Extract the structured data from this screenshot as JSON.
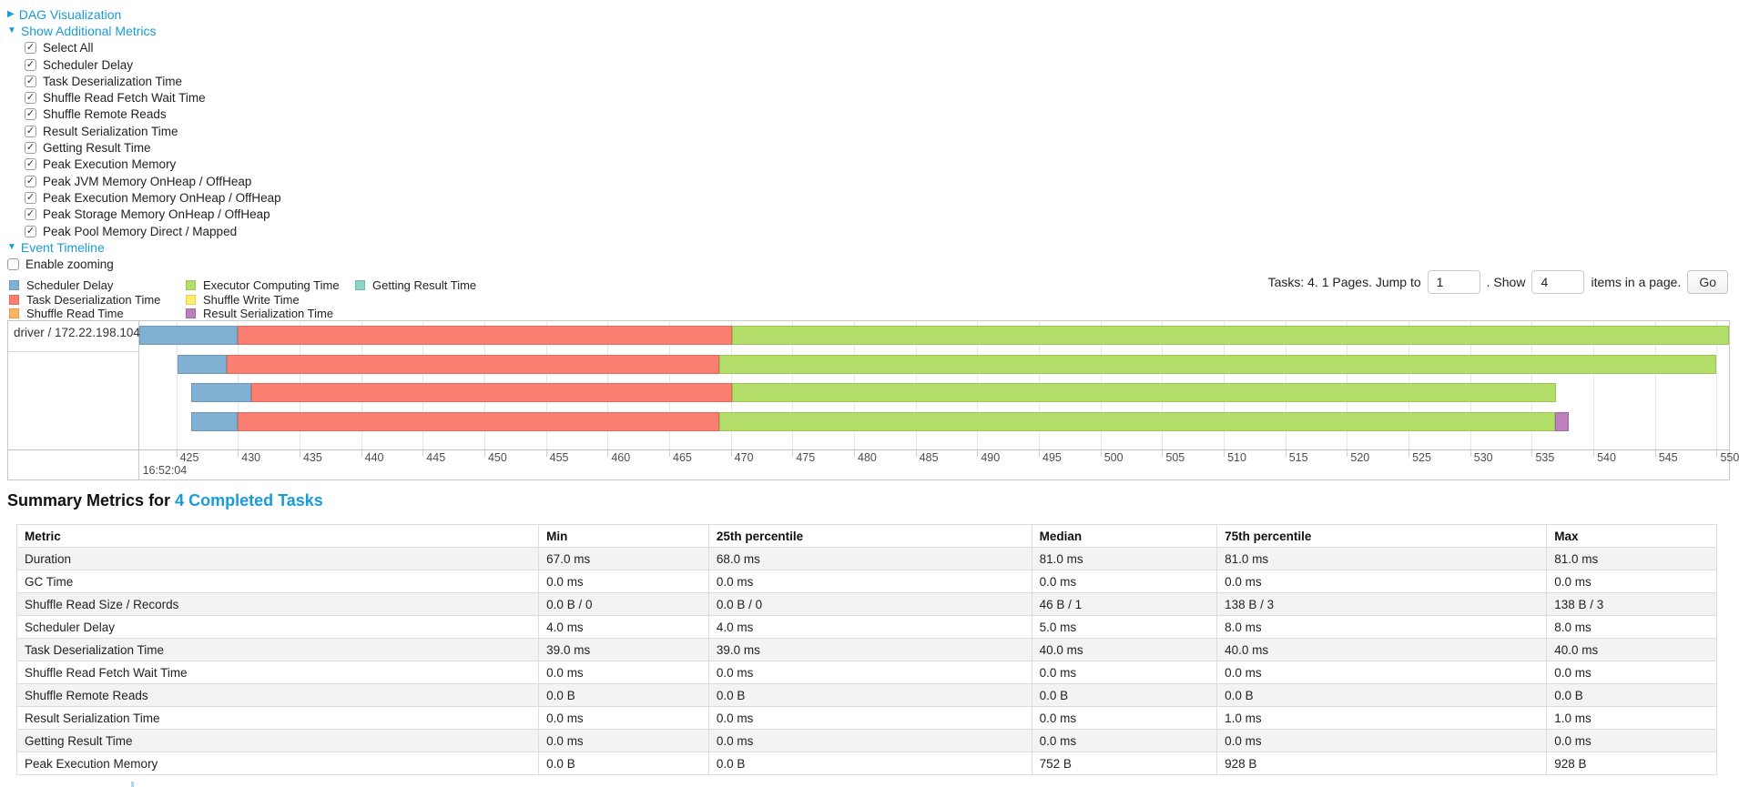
{
  "theme": {
    "link_color": "#1a9cd8",
    "table_stripe_color": "#f3f3f3"
  },
  "toggles": {
    "dag": {
      "label": "DAG Visualization",
      "state": "collapsed"
    },
    "metrics": {
      "label": "Show Additional Metrics",
      "state": "expanded"
    },
    "timeline": {
      "label": "Event Timeline",
      "state": "expanded"
    }
  },
  "metrics_panel": {
    "checkboxes": [
      {
        "label": "Select All",
        "checked": true
      },
      {
        "label": "Scheduler Delay",
        "checked": true
      },
      {
        "label": "Task Deserialization Time",
        "checked": true
      },
      {
        "label": "Shuffle Read Fetch Wait Time",
        "checked": true
      },
      {
        "label": "Shuffle Remote Reads",
        "checked": true
      },
      {
        "label": "Result Serialization Time",
        "checked": true
      },
      {
        "label": "Getting Result Time",
        "checked": true
      },
      {
        "label": "Peak Execution Memory",
        "checked": true
      },
      {
        "label": "Peak JVM Memory OnHeap / OffHeap",
        "checked": true
      },
      {
        "label": "Peak Execution Memory OnHeap / OffHeap",
        "checked": true
      },
      {
        "label": "Peak Storage Memory OnHeap / OffHeap",
        "checked": true
      },
      {
        "label": "Peak Pool Memory Direct / Mapped",
        "checked": true
      }
    ]
  },
  "enable_zooming": {
    "label": "Enable zooming",
    "checked": false
  },
  "legend": {
    "columns": [
      [
        {
          "label": "Scheduler Delay",
          "color_key": "scheduler_delay"
        },
        {
          "label": "Task Deserialization Time",
          "color_key": "deserialization"
        },
        {
          "label": "Shuffle Read Time",
          "color_key": "shuffle_read"
        }
      ],
      [
        {
          "label": "Executor Computing Time",
          "color_key": "executor_computing"
        },
        {
          "label": "Shuffle Write Time",
          "color_key": "shuffle_write"
        },
        {
          "label": "Result Serialization Time",
          "color_key": "result_serialization"
        }
      ],
      [
        {
          "label": "Getting Result Time",
          "color_key": "getting_result"
        }
      ]
    ]
  },
  "pagination": {
    "text_before": "Tasks: 4. 1 Pages. Jump to",
    "jump_value": "1",
    "text_mid": ". Show",
    "show_value": "4",
    "text_after": "items in a page.",
    "go_label": "Go"
  },
  "chart_data": {
    "type": "timeline-gantt",
    "group_label": "driver / 172.22.198.104",
    "axis": {
      "min": 422,
      "max": 551,
      "tick_start": 425,
      "tick_end": 550,
      "tick_step": 5,
      "start_time_label": "16:52:04",
      "grid": true
    },
    "colors": {
      "scheduler_delay": {
        "fill": "#80B1D3",
        "stroke": "#6b98ba"
      },
      "deserialization": {
        "fill": "#FB8072",
        "stroke": "#e0695c"
      },
      "shuffle_read": {
        "fill": "#FDB462",
        "stroke": "#e09a4c"
      },
      "executor_computing": {
        "fill": "#B3DE69",
        "stroke": "#9cc551"
      },
      "shuffle_write": {
        "fill": "#FFED6F",
        "stroke": "#e3d055"
      },
      "result_serialization": {
        "fill": "#BC80BD",
        "stroke": "#a369a4"
      },
      "getting_result": {
        "fill": "#8DD3C7",
        "stroke": "#74b8ac"
      }
    },
    "tasks": [
      {
        "segments": [
          {
            "type": "scheduler_delay",
            "start": 422.0,
            "end": 430.0
          },
          {
            "type": "deserialization",
            "start": 430.0,
            "end": 470.1
          },
          {
            "type": "executor_computing",
            "start": 470.1,
            "end": 551.0
          }
        ]
      },
      {
        "segments": [
          {
            "type": "scheduler_delay",
            "start": 425.1,
            "end": 429.1
          },
          {
            "type": "deserialization",
            "start": 429.1,
            "end": 469.1
          },
          {
            "type": "executor_computing",
            "start": 469.1,
            "end": 550.0
          }
        ]
      },
      {
        "segments": [
          {
            "type": "scheduler_delay",
            "start": 426.2,
            "end": 431.1
          },
          {
            "type": "deserialization",
            "start": 431.1,
            "end": 470.1
          },
          {
            "type": "executor_computing",
            "start": 470.1,
            "end": 537.0
          }
        ]
      },
      {
        "segments": [
          {
            "type": "scheduler_delay",
            "start": 426.2,
            "end": 430.0
          },
          {
            "type": "deserialization",
            "start": 430.0,
            "end": 469.1
          },
          {
            "type": "executor_computing",
            "start": 469.1,
            "end": 536.9
          },
          {
            "type": "result_serialization",
            "start": 536.9,
            "end": 538.0
          }
        ]
      }
    ]
  },
  "summary": {
    "heading_prefix": "Summary Metrics for ",
    "heading_link": "4 Completed Tasks"
  },
  "summary_table": {
    "col_widths_pct": [
      30.7,
      10.0,
      19.0,
      10.9,
      19.4,
      10.0
    ],
    "headers": [
      "Metric",
      "Min",
      "25th percentile",
      "Median",
      "75th percentile",
      "Max"
    ],
    "rows": [
      {
        "metric": "Duration",
        "values": [
          "67.0 ms",
          "68.0 ms",
          "81.0 ms",
          "81.0 ms",
          "81.0 ms"
        ]
      },
      {
        "metric": "GC Time",
        "values": [
          "0.0 ms",
          "0.0 ms",
          "0.0 ms",
          "0.0 ms",
          "0.0 ms"
        ]
      },
      {
        "metric": "Shuffle Read Size / Records",
        "values": [
          "0.0 B / 0",
          "0.0 B / 0",
          "46 B / 1",
          "138 B / 3",
          "138 B / 3"
        ]
      },
      {
        "metric": "Scheduler Delay",
        "values": [
          "4.0 ms",
          "4.0 ms",
          "5.0 ms",
          "8.0 ms",
          "8.0 ms"
        ]
      },
      {
        "metric": "Task Deserialization Time",
        "values": [
          "39.0 ms",
          "39.0 ms",
          "40.0 ms",
          "40.0 ms",
          "40.0 ms"
        ]
      },
      {
        "metric": "Shuffle Read Fetch Wait Time",
        "values": [
          "0.0 ms",
          "0.0 ms",
          "0.0 ms",
          "0.0 ms",
          "0.0 ms"
        ]
      },
      {
        "metric": "Shuffle Remote Reads",
        "values": [
          "0.0 B",
          "0.0 B",
          "0.0 B",
          "0.0 B",
          "0.0 B"
        ]
      },
      {
        "metric": "Result Serialization Time",
        "values": [
          "0.0 ms",
          "0.0 ms",
          "0.0 ms",
          "1.0 ms",
          "1.0 ms"
        ]
      },
      {
        "metric": "Getting Result Time",
        "values": [
          "0.0 ms",
          "0.0 ms",
          "0.0 ms",
          "0.0 ms",
          "0.0 ms"
        ]
      },
      {
        "metric": "Peak Execution Memory",
        "values": [
          "0.0 B",
          "0.0 B",
          "752 B",
          "928 B",
          "928 B"
        ]
      }
    ]
  }
}
